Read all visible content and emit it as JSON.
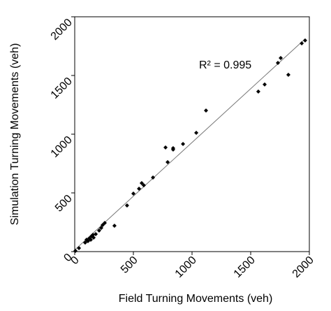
{
  "chart_data": {
    "type": "scatter",
    "x_label": "Field Turning Movements (veh)",
    "y_label": "Simulation Turning Movements (veh)",
    "annotation": "R² = 0.995",
    "xlim": [
      0,
      2000
    ],
    "ylim": [
      0,
      2000
    ],
    "xticks": [
      0,
      500,
      1000,
      1500,
      2000
    ],
    "yticks": [
      0,
      500,
      1000,
      1500,
      2000
    ],
    "color": "#000000",
    "trendline": true,
    "x": [
      6,
      36,
      89,
      101,
      113,
      125,
      137,
      143,
      155,
      161,
      179,
      208,
      226,
      238,
      256,
      339,
      446,
      500,
      548,
      571,
      589,
      667,
      774,
      792,
      839,
      839,
      923,
      1036,
      1119,
      1565,
      1619,
      1732,
      1756,
      1821,
      1935,
      1964
    ],
    "values": [
      6,
      30,
      77,
      101,
      89,
      113,
      101,
      131,
      143,
      119,
      149,
      179,
      202,
      226,
      244,
      220,
      393,
      494,
      536,
      583,
      565,
      631,
      887,
      762,
      881,
      869,
      917,
      1012,
      1202,
      1363,
      1423,
      1607,
      1649,
      1506,
      1774,
      1798
    ]
  }
}
